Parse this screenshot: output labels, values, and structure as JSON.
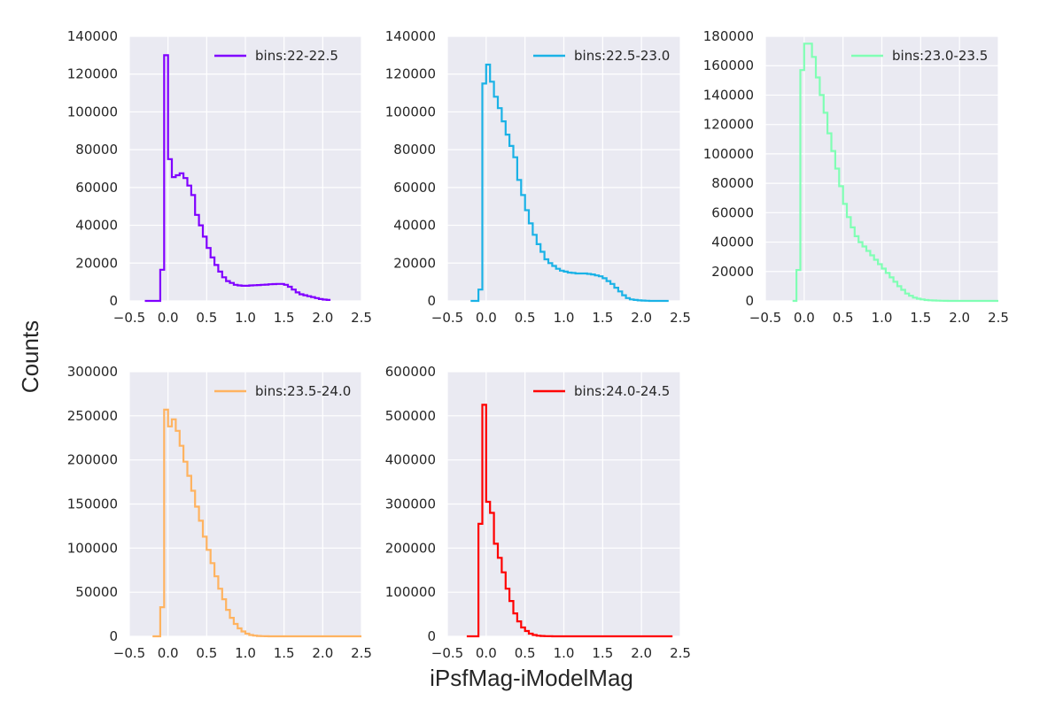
{
  "figure": {
    "ylabel": "Counts",
    "xlabel": "iPsfMag-iModelMag"
  },
  "chart_data": [
    {
      "type": "histogram",
      "series": [
        {
          "name": "bins:22-22.5",
          "color": "#8000ff"
        }
      ],
      "xlim": [
        -0.5,
        2.5
      ],
      "ylim": [
        0,
        140000
      ],
      "xticks": [
        "−0.5",
        "0.0",
        "0.5",
        "1.0",
        "1.5",
        "2.0",
        "2.5"
      ],
      "yticks": [
        "0",
        "20000",
        "40000",
        "60000",
        "80000",
        "100000",
        "120000",
        "140000"
      ],
      "grid": true,
      "legend_position": "top-right",
      "bin_width": 0.05,
      "bin_start": -0.3,
      "counts": [
        0,
        0,
        0,
        0,
        16500,
        130000,
        75000,
        65500,
        66500,
        67500,
        65000,
        61000,
        56000,
        45500,
        40000,
        34000,
        28000,
        23000,
        19000,
        15500,
        12500,
        10500,
        9500,
        8500,
        8200,
        8000,
        8000,
        8200,
        8300,
        8400,
        8500,
        8600,
        8800,
        8900,
        9000,
        9000,
        8500,
        7500,
        6000,
        4500,
        3500,
        3000,
        2500,
        2000,
        1500,
        1000,
        700,
        500
      ]
    },
    {
      "type": "histogram",
      "series": [
        {
          "name": "bins:22.5-23.0",
          "color": "#1ab2e6"
        }
      ],
      "xlim": [
        -0.5,
        2.5
      ],
      "ylim": [
        0,
        140000
      ],
      "xticks": [
        "−0.5",
        "0.0",
        "0.5",
        "1.0",
        "1.5",
        "2.0",
        "2.5"
      ],
      "yticks": [
        "0",
        "20000",
        "40000",
        "60000",
        "80000",
        "100000",
        "120000",
        "140000"
      ],
      "grid": true,
      "legend_position": "top-right",
      "bin_width": 0.05,
      "bin_start": -0.2,
      "counts": [
        0,
        0,
        6000,
        115000,
        125000,
        116000,
        108000,
        102000,
        95000,
        88000,
        82000,
        76000,
        64000,
        56000,
        48000,
        41000,
        35000,
        30000,
        26000,
        22000,
        20000,
        18500,
        17000,
        16000,
        15500,
        15000,
        14800,
        14500,
        14500,
        14500,
        14300,
        14000,
        13500,
        13000,
        12000,
        10500,
        9000,
        7000,
        5000,
        3000,
        1500,
        800,
        500,
        300,
        200,
        100,
        0,
        0,
        0,
        0,
        0
      ]
    },
    {
      "type": "histogram",
      "series": [
        {
          "name": "bins:23.0-23.5",
          "color": "#80ffb4"
        }
      ],
      "xlim": [
        -0.5,
        2.5
      ],
      "ylim": [
        0,
        180000
      ],
      "xticks": [
        "−0.5",
        "0.0",
        "0.5",
        "1.0",
        "1.5",
        "2.0",
        "2.5"
      ],
      "yticks": [
        "0",
        "20000",
        "40000",
        "60000",
        "80000",
        "100000",
        "120000",
        "140000",
        "160000",
        "180000"
      ],
      "grid": true,
      "legend_position": "top-right",
      "bin_width": 0.05,
      "bin_start": -0.15,
      "counts": [
        0,
        21000,
        157000,
        175000,
        175000,
        166000,
        152000,
        140000,
        128000,
        114000,
        102000,
        90000,
        78000,
        66000,
        57000,
        50000,
        44000,
        40000,
        37000,
        34000,
        31000,
        28000,
        25000,
        22000,
        19000,
        16000,
        13000,
        10000,
        7500,
        5000,
        3500,
        2200,
        1500,
        1000,
        600,
        400,
        300,
        200,
        100,
        50,
        0,
        0,
        0,
        0,
        0,
        0,
        0,
        0,
        0,
        0,
        0,
        0,
        0
      ]
    },
    {
      "type": "histogram",
      "series": [
        {
          "name": "bins:23.5-24.0",
          "color": "#ffb360"
        }
      ],
      "xlim": [
        -0.5,
        2.5
      ],
      "ylim": [
        0,
        300000
      ],
      "xticks": [
        "−0.5",
        "0.0",
        "0.5",
        "1.0",
        "1.5",
        "2.0",
        "2.5"
      ],
      "yticks": [
        "0",
        "50000",
        "100000",
        "150000",
        "200000",
        "250000",
        "300000"
      ],
      "grid": true,
      "legend_position": "top-right",
      "bin_width": 0.05,
      "bin_start": -0.2,
      "counts": [
        0,
        0,
        33000,
        257000,
        238000,
        246000,
        233000,
        216000,
        198000,
        182000,
        165000,
        147000,
        131000,
        113000,
        98000,
        83000,
        68000,
        54000,
        42000,
        30000,
        21000,
        14000,
        9000,
        5500,
        3000,
        1500,
        800,
        400,
        200,
        100,
        0,
        0,
        0,
        0,
        0,
        0,
        0,
        0,
        0,
        0,
        0,
        0,
        0,
        0,
        0,
        0,
        0,
        0,
        0,
        0,
        0,
        0,
        0,
        0,
        0
      ]
    },
    {
      "type": "histogram",
      "series": [
        {
          "name": "bins:24.0-24.5",
          "color": "#ff0000"
        }
      ],
      "xlim": [
        -0.5,
        2.5
      ],
      "ylim": [
        0,
        600000
      ],
      "xticks": [
        "−0.5",
        "0.0",
        "0.5",
        "1.0",
        "1.5",
        "2.0",
        "2.5"
      ],
      "yticks": [
        "0",
        "100000",
        "200000",
        "300000",
        "400000",
        "500000",
        "600000"
      ],
      "grid": true,
      "legend_position": "top-right",
      "bin_width": 0.05,
      "bin_start": -0.25,
      "counts": [
        0,
        0,
        0,
        255000,
        525000,
        305000,
        280000,
        210000,
        178000,
        145000,
        108000,
        80000,
        52000,
        34000,
        20000,
        12000,
        6000,
        3000,
        1500,
        800,
        400,
        200,
        100,
        50,
        0,
        0,
        0,
        0,
        0,
        0,
        0,
        0,
        0,
        0,
        0,
        0,
        0,
        0,
        0,
        0,
        0,
        0,
        0,
        0,
        0,
        0,
        0,
        0,
        0,
        0,
        0,
        0,
        0
      ]
    }
  ]
}
